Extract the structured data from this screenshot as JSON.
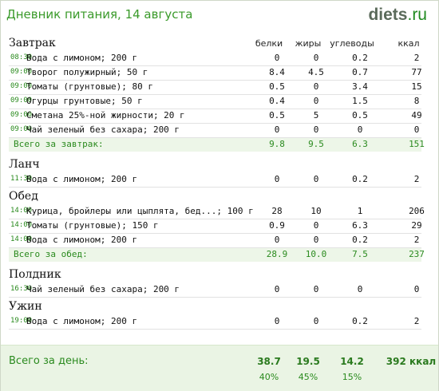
{
  "header": {
    "title": "Дневник питания, 14 августа",
    "logo_main": "diets",
    "logo_tld": ".ru"
  },
  "columns": [
    "белки",
    "жиры",
    "углеводы",
    "ккал"
  ],
  "meals": [
    {
      "name": "Завтрак",
      "items": [
        {
          "time": "08:30",
          "food": "Вода с лимоном; 200 г",
          "protein": "0",
          "fat": "0",
          "carbs": "0.2",
          "kcal": "2"
        },
        {
          "time": "09:00",
          "food": "Творог полужирный; 50 г",
          "protein": "8.4",
          "fat": "4.5",
          "carbs": "0.7",
          "kcal": "77"
        },
        {
          "time": "09:00",
          "food": "Томаты (грунтовые); 80 г",
          "protein": "0.5",
          "fat": "0",
          "carbs": "3.4",
          "kcal": "15"
        },
        {
          "time": "09:00",
          "food": "Огурцы грунтовые; 50 г",
          "protein": "0.4",
          "fat": "0",
          "carbs": "1.5",
          "kcal": "8"
        },
        {
          "time": "09:00",
          "food": "Сметана 25%-ной жирности; 20 г",
          "protein": "0.5",
          "fat": "5",
          "carbs": "0.5",
          "kcal": "49"
        },
        {
          "time": "09:00",
          "food": "Чай зеленый без сахара; 200 г",
          "protein": "0",
          "fat": "0",
          "carbs": "0",
          "kcal": "0"
        }
      ],
      "total": {
        "label": "Всего за завтрак:",
        "protein": "9.8",
        "fat": "9.5",
        "carbs": "6.3",
        "kcal": "151"
      }
    },
    {
      "name": "Ланч",
      "items": [
        {
          "time": "11:30",
          "food": "Вода с лимоном; 200 г",
          "protein": "0",
          "fat": "0",
          "carbs": "0.2",
          "kcal": "2"
        }
      ]
    },
    {
      "name": "Обед",
      "items": [
        {
          "time": "14:00",
          "food": "Курица, бройлеры или цыплята, бед...; 100 г",
          "protein": "28",
          "fat": "10",
          "carbs": "1",
          "kcal": "206"
        },
        {
          "time": "14:00",
          "food": "Томаты (грунтовые); 150 г",
          "protein": "0.9",
          "fat": "0",
          "carbs": "6.3",
          "kcal": "29"
        },
        {
          "time": "14:00",
          "food": "Вода с лимоном; 200 г",
          "protein": "0",
          "fat": "0",
          "carbs": "0.2",
          "kcal": "2"
        }
      ],
      "total": {
        "label": "Всего за обед:",
        "protein": "28.9",
        "fat": "10.0",
        "carbs": "7.5",
        "kcal": "237"
      }
    },
    {
      "name": "Полдник",
      "items": [
        {
          "time": "16:30",
          "food": "Чай зеленый без сахара; 200 г",
          "protein": "0",
          "fat": "0",
          "carbs": "0",
          "kcal": "0"
        }
      ]
    },
    {
      "name": "Ужин",
      "items": [
        {
          "time": "19:00",
          "food": "Вода с лимоном; 200 г",
          "protein": "0",
          "fat": "0",
          "carbs": "0.2",
          "kcal": "2"
        }
      ]
    }
  ],
  "day_total": {
    "label": "Всего за день:",
    "protein": "38.7",
    "fat": "19.5",
    "carbs": "14.2",
    "kcal": "392 ккал",
    "protein_pct": "40%",
    "fat_pct": "45%",
    "carbs_pct": "15%"
  },
  "colors": {
    "accent_green": "#2a8a1e",
    "title_green": "#3a9a2a",
    "total_bg": "#edf6e8"
  }
}
